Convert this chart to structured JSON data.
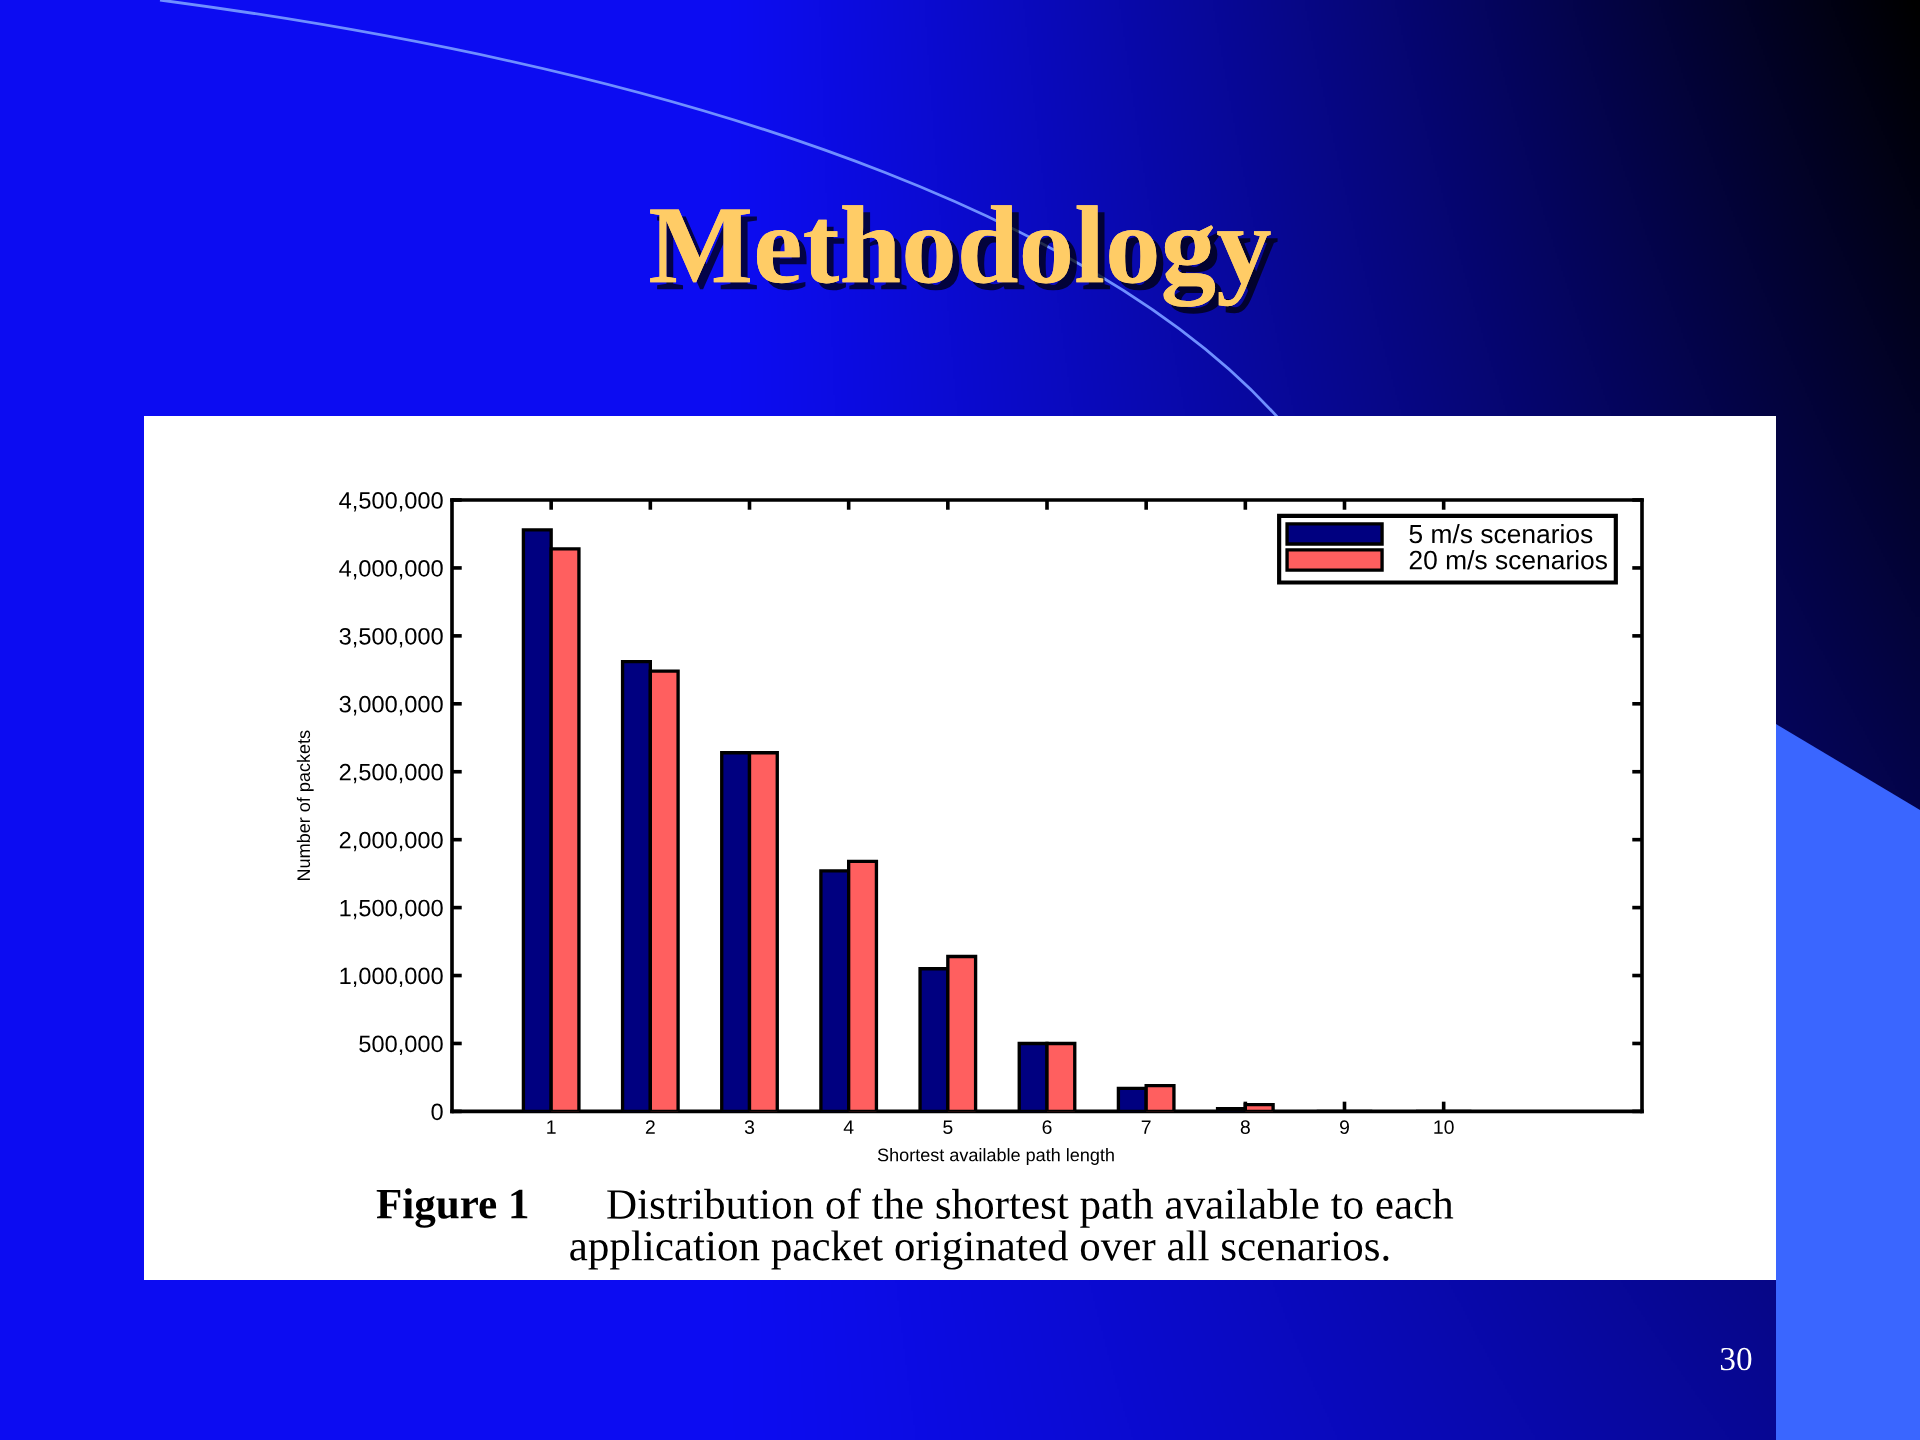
{
  "chart_data": {
    "type": "bar",
    "title": "Methodology",
    "xlabel": "Shortest available path length",
    "ylabel": "Number of packets",
    "x": [
      1,
      2,
      3,
      4,
      5,
      6,
      7,
      8,
      9,
      10
    ],
    "series": [
      {
        "name": "5 m/s scenarios",
        "color": "#000080",
        "values": [
          4280000,
          3310000,
          2640000,
          1770000,
          1050000,
          500000,
          170000,
          20000,
          0,
          0
        ]
      },
      {
        "name": "20 m/s scenarios",
        "color": "#ff5f5f",
        "values": [
          4140000,
          3240000,
          2640000,
          1840000,
          1140000,
          500000,
          190000,
          50000,
          0,
          0
        ]
      }
    ],
    "xlim": [
      0,
      12
    ],
    "xticks": [
      1,
      2,
      3,
      4,
      5,
      6,
      7,
      8,
      9,
      10
    ],
    "ylim": [
      0,
      4500000
    ],
    "yticks": [
      0,
      {
        "value": 500000,
        "label": "500,000"
      },
      {
        "value": 1000000,
        "label": "1,000,000"
      },
      {
        "value": 1500000,
        "label": "1,500,000"
      },
      {
        "value": 2000000,
        "label": "2,000,000"
      },
      {
        "value": 2500000,
        "label": "2,500,000"
      },
      {
        "value": 3000000,
        "label": "3,000,000"
      },
      {
        "value": 3500000,
        "label": "3,500,000"
      },
      {
        "value": 4000000,
        "label": "4,000,000"
      },
      {
        "value": 4500000,
        "label": "4,500,000"
      }
    ],
    "legend": "top right",
    "grid": false,
    "annotations": [
      "Figure 1",
      "Distribution of the shortest path available to each\napplication packet originated over all scenarios.",
      "30"
    ]
  }
}
